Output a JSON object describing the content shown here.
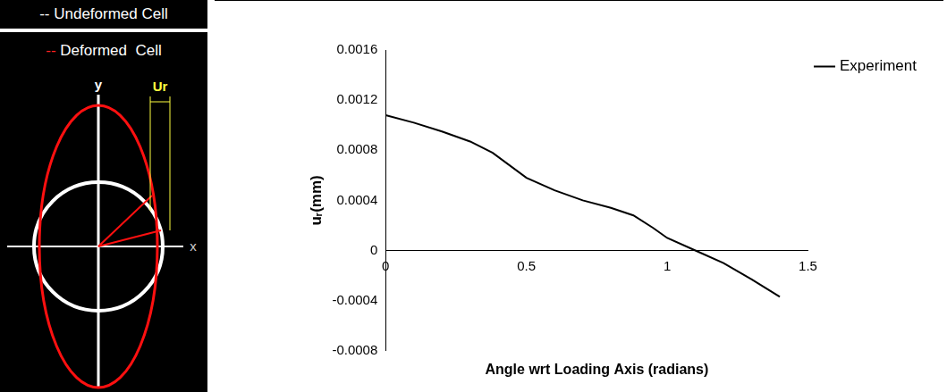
{
  "chart_data": {
    "type": "line",
    "x_label": "Angle wrt Loading Axis (radians)",
    "y_label": "uᵣ(mm)",
    "x": [
      0,
      0.1,
      0.2,
      0.3,
      0.38,
      0.5,
      0.6,
      0.7,
      0.8,
      0.88,
      0.95,
      1.0,
      1.1,
      1.2,
      1.3,
      1.4
    ],
    "series": [
      {
        "name": "Experiment",
        "color": "#000000",
        "values": [
          0.00108,
          0.00102,
          0.00095,
          0.00087,
          0.00078,
          0.00058,
          0.00048,
          0.0004,
          0.00034,
          0.00028,
          0.00018,
          0.0001,
          0.0,
          -0.0001,
          -0.00023,
          -0.00037
        ]
      }
    ],
    "xlim": [
      0,
      1.5
    ],
    "xticks": [
      0,
      0.5,
      1,
      1.5
    ],
    "ylim": [
      -0.0008,
      0.0016
    ],
    "yticks": [
      -0.0008,
      -0.0004,
      0,
      0.0004,
      0.0008,
      0.0012,
      0.0016
    ],
    "grid": false,
    "legend": "right"
  },
  "diagram": {
    "undeformed_label": "-- Undeformed Cell",
    "deformed_marker": "--",
    "deformed_label": "Deformed  Cell",
    "y_axis": "y",
    "x_axis": "x",
    "displacement": "Ur"
  }
}
